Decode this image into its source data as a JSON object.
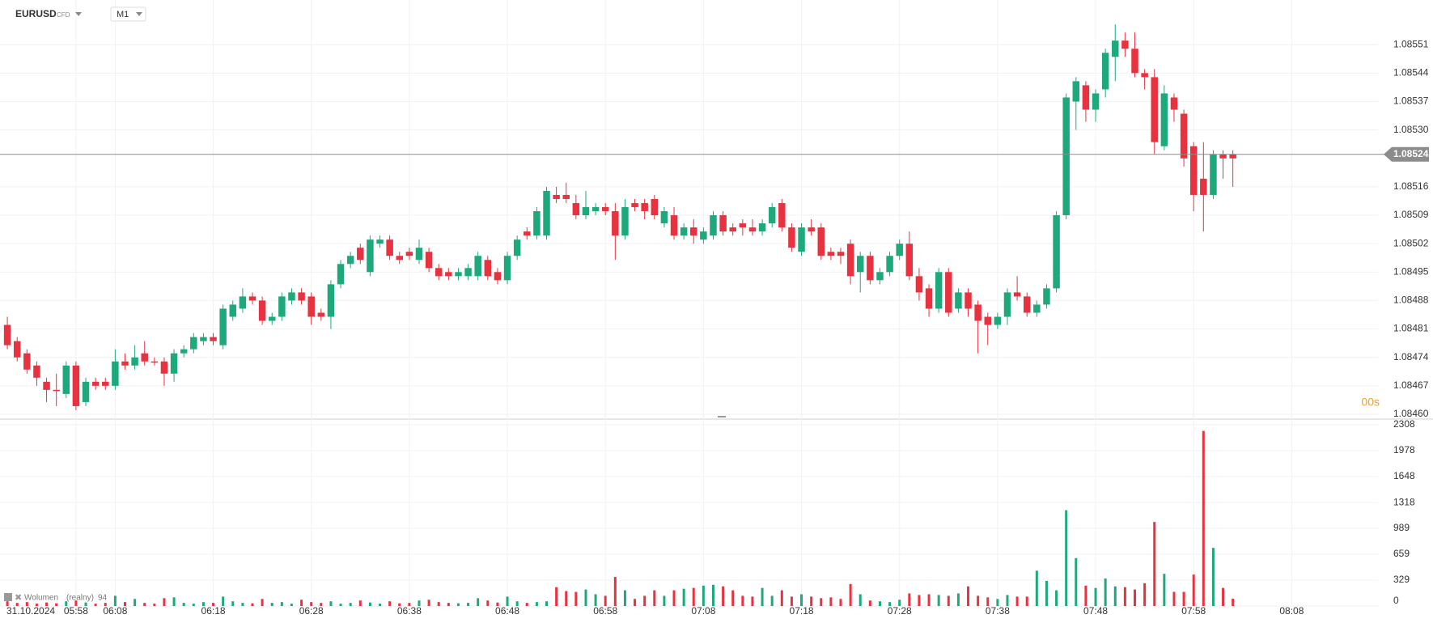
{
  "header": {
    "symbol": "EURUSD",
    "market": "CFD",
    "interval": "M1"
  },
  "chart_data": [
    {
      "type": "candlestick",
      "up_color": "#1ea97c",
      "down_color": "#e8323f",
      "current_price": 1.08524,
      "countdown": "00s",
      "ylim": [
        1.08459,
        1.08562
      ],
      "yticks": [
        {
          "value": 1.0846,
          "label": "1.08460"
        },
        1.08467,
        1.08474,
        1.08481,
        1.08488,
        1.08495,
        1.08502,
        1.08509,
        1.08516,
        {
          "value": 1.0853,
          "label": "1.08530"
        },
        1.08537,
        1.08544,
        1.08551
      ],
      "grid": true,
      "ohlc": [
        [
          1.08482,
          1.08484,
          1.08476,
          1.08477
        ],
        [
          1.08478,
          1.08479,
          1.08473,
          1.08474
        ],
        [
          1.08475,
          1.08476,
          1.0847,
          1.08471
        ],
        [
          1.08472,
          1.08473,
          1.08467,
          1.08469
        ],
        [
          1.08468,
          1.08469,
          1.08463,
          1.08466
        ],
        [
          1.08466,
          1.0847,
          1.08462,
          1.08466
        ],
        [
          1.08465,
          1.08473,
          1.08464,
          1.08472
        ],
        [
          1.08472,
          1.08473,
          1.08461,
          1.08462
        ],
        [
          1.08463,
          1.08469,
          1.08462,
          1.08468
        ],
        [
          1.08468,
          1.08469,
          1.08466,
          1.08467
        ],
        [
          1.08468,
          1.08469,
          1.08466,
          1.08467
        ],
        [
          1.08467,
          1.08476,
          1.08466,
          1.08473
        ],
        [
          1.08473,
          1.08475,
          1.08471,
          1.08472
        ],
        [
          1.08472,
          1.08477,
          1.08471,
          1.08474
        ],
        [
          1.08475,
          1.08478,
          1.08472,
          1.08473
        ],
        [
          1.08473,
          1.08474,
          1.08472,
          1.08473
        ],
        [
          1.08473,
          1.08474,
          1.08467,
          1.0847
        ],
        [
          1.0847,
          1.08476,
          1.08468,
          1.08475
        ],
        [
          1.08475,
          1.08477,
          1.08474,
          1.08476
        ],
        [
          1.08476,
          1.0848,
          1.08475,
          1.08479
        ],
        [
          1.08478,
          1.0848,
          1.08477,
          1.08479
        ],
        [
          1.08479,
          1.0848,
          1.08477,
          1.08478
        ],
        [
          1.08477,
          1.08487,
          1.08476,
          1.08486
        ],
        [
          1.08484,
          1.08488,
          1.08483,
          1.08487
        ],
        [
          1.08486,
          1.08491,
          1.08485,
          1.08489
        ],
        [
          1.08489,
          1.0849,
          1.08487,
          1.08488
        ],
        [
          1.08488,
          1.08489,
          1.08482,
          1.08483
        ],
        [
          1.08483,
          1.08485,
          1.08482,
          1.08484
        ],
        [
          1.08484,
          1.0849,
          1.08483,
          1.08489
        ],
        [
          1.08488,
          1.08491,
          1.08487,
          1.0849
        ],
        [
          1.0849,
          1.08491,
          1.08487,
          1.08488
        ],
        [
          1.08489,
          1.0849,
          1.08482,
          1.08484
        ],
        [
          1.08485,
          1.08486,
          1.08483,
          1.08484
        ],
        [
          1.08484,
          1.08493,
          1.08481,
          1.08492
        ],
        [
          1.08492,
          1.08498,
          1.08491,
          1.08497
        ],
        [
          1.08497,
          1.085,
          1.08496,
          1.08499
        ],
        [
          1.08501,
          1.08502,
          1.08497,
          1.08498
        ],
        [
          1.08495,
          1.08504,
          1.08494,
          1.08503
        ],
        [
          1.08502,
          1.08504,
          1.08501,
          1.08503
        ],
        [
          1.08503,
          1.08504,
          1.08498,
          1.08499
        ],
        [
          1.08499,
          1.085,
          1.08497,
          1.08498
        ],
        [
          1.085,
          1.08501,
          1.08498,
          1.08499
        ],
        [
          1.08498,
          1.08503,
          1.08497,
          1.08501
        ],
        [
          1.085,
          1.08501,
          1.08495,
          1.08496
        ],
        [
          1.08496,
          1.08497,
          1.08493,
          1.08494
        ],
        [
          1.08495,
          1.08496,
          1.08493,
          1.08494
        ],
        [
          1.08494,
          1.08496,
          1.08493,
          1.08495
        ],
        [
          1.08494,
          1.08497,
          1.08493,
          1.08496
        ],
        [
          1.08494,
          1.085,
          1.08493,
          1.08499
        ],
        [
          1.08498,
          1.08499,
          1.08493,
          1.08494
        ],
        [
          1.08495,
          1.08496,
          1.08492,
          1.08493
        ],
        [
          1.08493,
          1.085,
          1.08492,
          1.08499
        ],
        [
          1.08499,
          1.08504,
          1.08498,
          1.08503
        ],
        [
          1.08505,
          1.08506,
          1.08503,
          1.08504
        ],
        [
          1.08504,
          1.08511,
          1.08503,
          1.0851
        ],
        [
          1.08504,
          1.08516,
          1.08503,
          1.08515
        ],
        [
          1.08514,
          1.08516,
          1.08512,
          1.08513
        ],
        [
          1.08514,
          1.08517,
          1.08512,
          1.08513
        ],
        [
          1.08512,
          1.08514,
          1.08508,
          1.08509
        ],
        [
          1.08509,
          1.08515,
          1.08508,
          1.08511
        ],
        [
          1.0851,
          1.08512,
          1.08509,
          1.08511
        ],
        [
          1.08511,
          1.08512,
          1.08509,
          1.0851
        ],
        [
          1.0851,
          1.08512,
          1.08498,
          1.08504
        ],
        [
          1.08504,
          1.08513,
          1.08503,
          1.08511
        ],
        [
          1.08512,
          1.08513,
          1.0851,
          1.08511
        ],
        [
          1.08512,
          1.08513,
          1.08508,
          1.0851
        ],
        [
          1.08513,
          1.08514,
          1.08508,
          1.08509
        ],
        [
          1.08507,
          1.08511,
          1.08506,
          1.0851
        ],
        [
          1.08509,
          1.08511,
          1.08503,
          1.08504
        ],
        [
          1.08504,
          1.08507,
          1.08503,
          1.08506
        ],
        [
          1.08506,
          1.08508,
          1.08502,
          1.08504
        ],
        [
          1.08503,
          1.08506,
          1.08502,
          1.08505
        ],
        [
          1.08504,
          1.0851,
          1.08503,
          1.08509
        ],
        [
          1.08509,
          1.0851,
          1.08504,
          1.08505
        ],
        [
          1.08506,
          1.08507,
          1.08504,
          1.08505
        ],
        [
          1.08507,
          1.08508,
          1.08504,
          1.08506
        ],
        [
          1.08506,
          1.08508,
          1.08504,
          1.08505
        ],
        [
          1.08505,
          1.08508,
          1.08504,
          1.08507
        ],
        [
          1.08507,
          1.08512,
          1.08506,
          1.08511
        ],
        [
          1.08512,
          1.08513,
          1.08505,
          1.08506
        ],
        [
          1.08506,
          1.08507,
          1.085,
          1.08501
        ],
        [
          1.085,
          1.08507,
          1.08499,
          1.08506
        ],
        [
          1.08506,
          1.08508,
          1.08504,
          1.08505
        ],
        [
          1.08506,
          1.08507,
          1.08498,
          1.08499
        ],
        [
          1.085,
          1.08501,
          1.08498,
          1.08499
        ],
        [
          1.085,
          1.08501,
          1.08497,
          1.08499
        ],
        [
          1.08502,
          1.08503,
          1.08492,
          1.08494
        ],
        [
          1.08495,
          1.085,
          1.0849,
          1.08499
        ],
        [
          1.08499,
          1.085,
          1.08492,
          1.08493
        ],
        [
          1.08493,
          1.08496,
          1.08492,
          1.08495
        ],
        [
          1.08495,
          1.085,
          1.08494,
          1.08499
        ],
        [
          1.08499,
          1.08503,
          1.08498,
          1.08502
        ],
        [
          1.08502,
          1.08505,
          1.08493,
          1.08494
        ],
        [
          1.08494,
          1.08496,
          1.08488,
          1.0849
        ],
        [
          1.08491,
          1.08492,
          1.08484,
          1.08486
        ],
        [
          1.08486,
          1.08496,
          1.08485,
          1.08495
        ],
        [
          1.08495,
          1.08496,
          1.08484,
          1.08485
        ],
        [
          1.08486,
          1.08491,
          1.08485,
          1.0849
        ],
        [
          1.0849,
          1.08491,
          1.08484,
          1.08486
        ],
        [
          1.08487,
          1.08488,
          1.08475,
          1.08483
        ],
        [
          1.08484,
          1.08485,
          1.08477,
          1.08482
        ],
        [
          1.08482,
          1.08485,
          1.08481,
          1.08484
        ],
        [
          1.08484,
          1.08491,
          1.08482,
          1.0849
        ],
        [
          1.0849,
          1.08494,
          1.08488,
          1.08489
        ],
        [
          1.08489,
          1.0849,
          1.08484,
          1.08485
        ],
        [
          1.08485,
          1.08488,
          1.08484,
          1.08487
        ],
        [
          1.08487,
          1.08492,
          1.08486,
          1.08491
        ],
        [
          1.08491,
          1.0851,
          1.0849,
          1.08509
        ],
        [
          1.08509,
          1.08539,
          1.08508,
          1.08538
        ],
        [
          1.08537,
          1.08543,
          1.0853,
          1.08542
        ],
        [
          1.08541,
          1.08542,
          1.08532,
          1.08535
        ],
        [
          1.08535,
          1.0854,
          1.08532,
          1.08539
        ],
        [
          1.0854,
          1.0855,
          1.08538,
          1.08549
        ],
        [
          1.08548,
          1.08556,
          1.08542,
          1.08552
        ],
        [
          1.08552,
          1.08554,
          1.08548,
          1.0855
        ],
        [
          1.0855,
          1.08554,
          1.08543,
          1.08544
        ],
        [
          1.08544,
          1.08545,
          1.0854,
          1.08543
        ],
        [
          1.08543,
          1.08545,
          1.08524,
          1.08527
        ],
        [
          1.08526,
          1.08541,
          1.08525,
          1.08539
        ],
        [
          1.08538,
          1.08539,
          1.08532,
          1.08535
        ],
        [
          1.08534,
          1.08535,
          1.08521,
          1.08523
        ],
        [
          1.08526,
          1.08527,
          1.0851,
          1.08514
        ],
        [
          1.08518,
          1.08527,
          1.08505,
          1.08514
        ],
        [
          1.08514,
          1.08525,
          1.08513,
          1.08524
        ],
        [
          1.08524,
          1.08525,
          1.08518,
          1.08523
        ],
        [
          1.08524,
          1.08525,
          1.08516,
          1.08523
        ]
      ]
    },
    {
      "type": "bar",
      "title": "Wolumen",
      "subtitle": "(realny)",
      "ylim": [
        0,
        2370
      ],
      "yticks": [
        0,
        329,
        659,
        989,
        1318,
        1648,
        1978,
        2308
      ],
      "xlim": [
        -0.75,
        139.8
      ],
      "date_label": "31.10.2024",
      "xticks": [
        {
          "value": 7,
          "label": "05:58"
        },
        {
          "value": 11,
          "label": "06:08"
        },
        {
          "value": 21,
          "label": "06:18"
        },
        {
          "value": 31,
          "label": "06:28"
        },
        {
          "value": 41,
          "label": "06:38"
        },
        {
          "value": 51,
          "label": "06:48"
        },
        {
          "value": 61,
          "label": "06:58"
        },
        {
          "value": 71,
          "label": "07:08"
        },
        {
          "value": 81,
          "label": "07:18"
        },
        {
          "value": 91,
          "label": "07:28"
        },
        {
          "value": 101,
          "label": "07:38"
        },
        {
          "value": 111,
          "label": "07:48"
        },
        {
          "value": 121,
          "label": "07:58"
        },
        {
          "value": 131,
          "label": "08:08"
        }
      ],
      "values": [
        60,
        40,
        50,
        30,
        45,
        35,
        60,
        70,
        45,
        30,
        40,
        130,
        50,
        90,
        40,
        30,
        100,
        110,
        40,
        30,
        50,
        40,
        120,
        60,
        40,
        35,
        90,
        40,
        50,
        30,
        80,
        50,
        40,
        60,
        30,
        40,
        70,
        45,
        30,
        60,
        35,
        40,
        70,
        80,
        50,
        40,
        35,
        40,
        100,
        70,
        45,
        120,
        60,
        40,
        50,
        60,
        240,
        190,
        180,
        210,
        150,
        130,
        370,
        200,
        90,
        130,
        200,
        130,
        200,
        220,
        230,
        260,
        270,
        250,
        200,
        130,
        120,
        230,
        130,
        200,
        120,
        150,
        120,
        100,
        110,
        90,
        280,
        150,
        70,
        60,
        50,
        80,
        160,
        140,
        150,
        140,
        130,
        160,
        250,
        130,
        110,
        90,
        140,
        120,
        120,
        450,
        320,
        200,
        1220,
        610,
        260,
        230,
        350,
        250,
        240,
        210,
        290,
        1070,
        410,
        180,
        180,
        400,
        2230,
        740,
        230,
        94
      ]
    }
  ]
}
